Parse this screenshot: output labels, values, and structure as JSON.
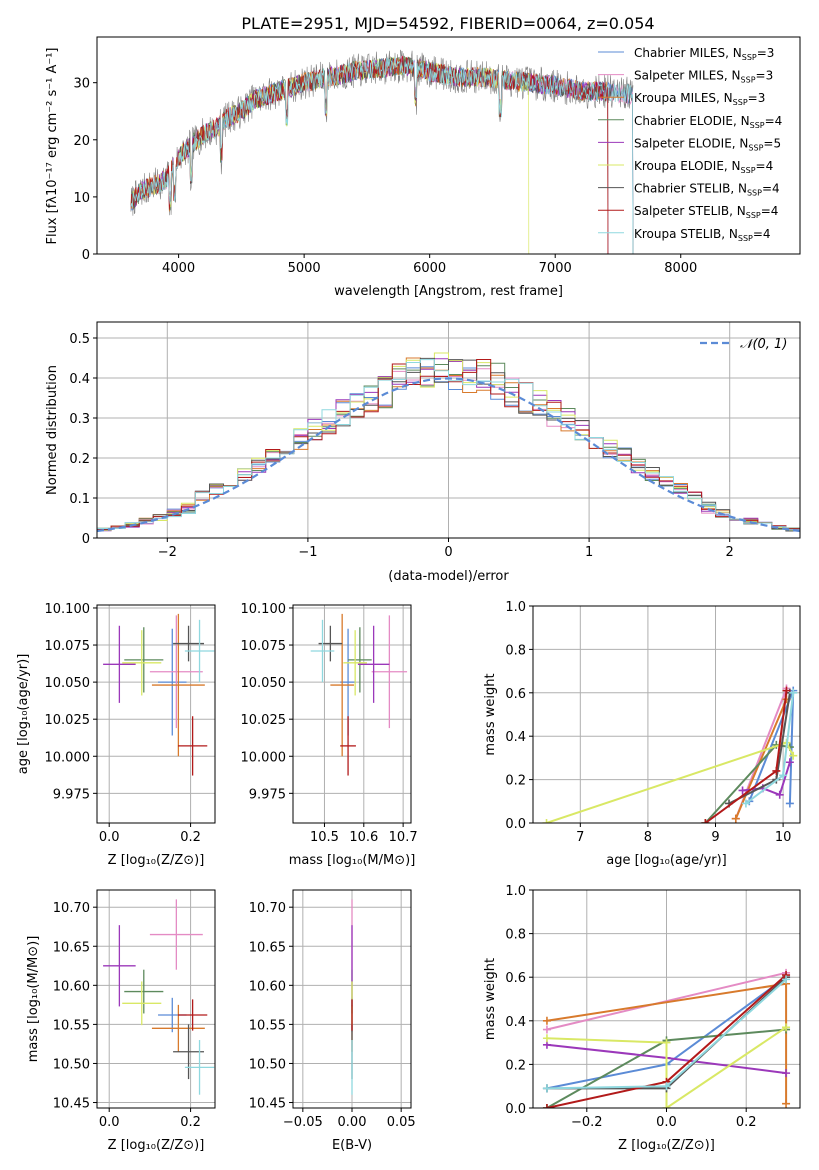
{
  "figure": {
    "title": "PLATE=2951, MJD=54592, FIBERID=0064, z=0.054"
  },
  "colors": {
    "chab_miles": "#5b8bd6",
    "salp_miles": "#e48bc4",
    "krou_miles": "#d87a2c",
    "chab_elodie": "#5d8a5d",
    "salp_elodie": "#9b38ba",
    "krou_elodie": "#d9e865",
    "chab_stelib": "#555555",
    "salp_stelib": "#b21a1a",
    "krou_stelib": "#8fd8df",
    "gaussian": "#5b8bd6",
    "grid": "#b0b0b0"
  },
  "chart_data": [
    {
      "id": "spectrum",
      "type": "line",
      "xlabel": "wavelength [Angstrom, rest frame]",
      "ylabel": "Flux [fλ10⁻¹⁷ erg cm⁻² s⁻¹ A⁻¹]",
      "xlim": [
        3350,
        8950
      ],
      "ylim": [
        0,
        38
      ],
      "xticks": [
        4000,
        5000,
        6000,
        7000,
        8000
      ],
      "yticks": [
        0,
        10,
        20,
        30
      ],
      "grid": false,
      "legend_position": "top-right",
      "continuum": {
        "x": [
          3620,
          3700,
          3800,
          3900,
          4000,
          4100,
          4200,
          4300,
          4400,
          4500,
          4600,
          4800,
          5000,
          5200,
          5400,
          5600,
          5800,
          6000,
          6200,
          6400,
          6600,
          6800,
          7000,
          7200,
          7400,
          7600
        ],
        "y": [
          9,
          11,
          12,
          13,
          17,
          19,
          21,
          22,
          24,
          25,
          27,
          28.5,
          30,
          31,
          32,
          32.5,
          33,
          32,
          31,
          31,
          30.5,
          30,
          29.5,
          28.5,
          28.5,
          28
        ]
      },
      "legend": [
        {
          "label": "Chabrier MILES, N",
          "sub": "SSP",
          "eq": "=3",
          "color": "chab_miles"
        },
        {
          "label": "Salpeter MILES, N",
          "sub": "SSP",
          "eq": "=3",
          "color": "salp_miles"
        },
        {
          "label": "Kroupa MILES, N",
          "sub": "SSP",
          "eq": "=3",
          "color": "krou_miles"
        },
        {
          "label": "Chabrier ELODIE, N",
          "sub": "SSP",
          "eq": "=4",
          "color": "chab_elodie"
        },
        {
          "label": "Salpeter ELODIE, N",
          "sub": "SSP",
          "eq": "=5",
          "color": "salp_elodie"
        },
        {
          "label": "Kroupa ELODIE, N",
          "sub": "SSP",
          "eq": "=4",
          "color": "krou_elodie"
        },
        {
          "label": "Chabrier STELIB, N",
          "sub": "SSP",
          "eq": "=4",
          "color": "chab_stelib"
        },
        {
          "label": "Salpeter STELIB, N",
          "sub": "SSP",
          "eq": "=4",
          "color": "salp_stelib"
        },
        {
          "label": "Kroupa STELIB, N",
          "sub": "SSP",
          "eq": "=4",
          "color": "krou_stelib"
        }
      ]
    },
    {
      "id": "residuals",
      "type": "histogram",
      "xlabel": "(data-model)/error",
      "ylabel": "Normed distribution",
      "xlim": [
        -2.5,
        2.5
      ],
      "ylim": [
        0,
        0.54
      ],
      "xticks": [
        -2,
        -1,
        0,
        1,
        2
      ],
      "yticks": [
        0,
        0.1,
        0.2,
        0.3,
        0.4,
        0.5
      ],
      "grid": true,
      "legend_position": "top-right",
      "gaussian_label": "𝒩(0, 1)",
      "bin_width": 0.1,
      "series_colors": [
        "chab_miles",
        "salp_miles",
        "krou_miles",
        "chab_elodie",
        "salp_elodie",
        "krou_elodie",
        "chab_stelib",
        "salp_stelib",
        "krou_stelib"
      ]
    },
    {
      "id": "age_vs_Z",
      "type": "errorbar",
      "xlabel": "Z [log₁₀(Z/Z⊙)]",
      "ylabel": "age  [log₁₀(age/yr)]",
      "xlim": [
        -0.03,
        0.26
      ],
      "ylim": [
        9.955,
        10.102
      ],
      "xticks": [
        0.0,
        0.2
      ],
      "xticklabels": [
        "0.0",
        "0.2"
      ],
      "yticks": [
        9.975,
        10.0,
        10.025,
        10.05,
        10.075,
        10.1
      ],
      "yticklabels": [
        "9.975",
        "10.000",
        "10.025",
        "10.050",
        "10.075",
        "10.100"
      ],
      "grid": true,
      "points": [
        {
          "x": 0.155,
          "y": 10.05,
          "xerr": 0.035,
          "yerr": 0.036,
          "color": "chab_miles"
        },
        {
          "x": 0.165,
          "y": 10.057,
          "xerr": 0.065,
          "yerr": 0.038,
          "color": "salp_miles"
        },
        {
          "x": 0.17,
          "y": 10.048,
          "xerr": 0.065,
          "yerr": 0.048,
          "color": "krou_miles"
        },
        {
          "x": 0.085,
          "y": 10.065,
          "xerr": 0.048,
          "yerr": 0.022,
          "color": "chab_elodie"
        },
        {
          "x": 0.025,
          "y": 10.062,
          "xerr": 0.04,
          "yerr": 0.026,
          "color": "salp_elodie"
        },
        {
          "x": 0.08,
          "y": 10.063,
          "xerr": 0.048,
          "yerr": 0.022,
          "color": "krou_elodie"
        },
        {
          "x": 0.195,
          "y": 10.076,
          "xerr": 0.038,
          "yerr": 0.012,
          "color": "chab_stelib"
        },
        {
          "x": 0.205,
          "y": 10.007,
          "xerr": 0.036,
          "yerr": 0.02,
          "color": "salp_stelib"
        },
        {
          "x": 0.222,
          "y": 10.071,
          "xerr": 0.036,
          "yerr": 0.021,
          "color": "krou_stelib"
        }
      ]
    },
    {
      "id": "age_vs_mass",
      "type": "errorbar",
      "xlabel": "mass [log₁₀(M/M⊙)]",
      "ylabel": "",
      "xlim": [
        10.42,
        10.72
      ],
      "ylim": [
        9.955,
        10.102
      ],
      "xticks": [
        10.5,
        10.6,
        10.7
      ],
      "xticklabels": [
        "10.5",
        "10.6",
        "10.7"
      ],
      "yticks": [
        9.975,
        10.0,
        10.025,
        10.05,
        10.075,
        10.1
      ],
      "yticklabels": [
        "9.975",
        "10.000",
        "10.025",
        "10.050",
        "10.075",
        "10.100"
      ],
      "grid": true,
      "points": [
        {
          "x": 10.56,
          "y": 10.05,
          "xerr": 0.02,
          "yerr": 0.036,
          "color": "chab_miles"
        },
        {
          "x": 10.665,
          "y": 10.057,
          "xerr": 0.045,
          "yerr": 0.038,
          "color": "salp_miles"
        },
        {
          "x": 10.545,
          "y": 10.048,
          "xerr": 0.03,
          "yerr": 0.048,
          "color": "krou_miles"
        },
        {
          "x": 10.59,
          "y": 10.065,
          "xerr": 0.03,
          "yerr": 0.022,
          "color": "chab_elodie"
        },
        {
          "x": 10.625,
          "y": 10.062,
          "xerr": 0.04,
          "yerr": 0.026,
          "color": "salp_elodie"
        },
        {
          "x": 10.578,
          "y": 10.063,
          "xerr": 0.03,
          "yerr": 0.022,
          "color": "krou_elodie"
        },
        {
          "x": 10.515,
          "y": 10.076,
          "xerr": 0.03,
          "yerr": 0.012,
          "color": "chab_stelib"
        },
        {
          "x": 10.56,
          "y": 10.007,
          "xerr": 0.02,
          "yerr": 0.02,
          "color": "salp_stelib"
        },
        {
          "x": 10.495,
          "y": 10.071,
          "xerr": 0.03,
          "yerr": 0.021,
          "color": "krou_stelib"
        }
      ]
    },
    {
      "id": "mass_vs_Z",
      "type": "errorbar",
      "xlabel": "Z [log₁₀(Z/Z⊙)]",
      "ylabel": "mass [log₁₀(M/M⊙)]",
      "xlim": [
        -0.03,
        0.26
      ],
      "ylim": [
        10.443,
        10.722
      ],
      "xticks": [
        0.0,
        0.2
      ],
      "xticklabels": [
        "0.0",
        "0.2"
      ],
      "yticks": [
        10.45,
        10.5,
        10.55,
        10.6,
        10.65,
        10.7
      ],
      "yticklabels": [
        "10.45",
        "10.50",
        "10.55",
        "10.60",
        "10.65",
        "10.70"
      ],
      "grid": true,
      "points": [
        {
          "x": 0.155,
          "y": 10.562,
          "xerr": 0.035,
          "yerr": 0.022,
          "color": "chab_miles"
        },
        {
          "x": 0.165,
          "y": 10.665,
          "xerr": 0.065,
          "yerr": 0.045,
          "color": "salp_miles"
        },
        {
          "x": 0.17,
          "y": 10.545,
          "xerr": 0.065,
          "yerr": 0.03,
          "color": "krou_miles"
        },
        {
          "x": 0.085,
          "y": 10.592,
          "xerr": 0.048,
          "yerr": 0.028,
          "color": "chab_elodie"
        },
        {
          "x": 0.025,
          "y": 10.625,
          "xerr": 0.04,
          "yerr": 0.052,
          "color": "salp_elodie"
        },
        {
          "x": 0.08,
          "y": 10.577,
          "xerr": 0.048,
          "yerr": 0.028,
          "color": "krou_elodie"
        },
        {
          "x": 0.195,
          "y": 10.515,
          "xerr": 0.038,
          "yerr": 0.035,
          "color": "chab_stelib"
        },
        {
          "x": 0.205,
          "y": 10.562,
          "xerr": 0.036,
          "yerr": 0.02,
          "color": "salp_stelib"
        },
        {
          "x": 0.222,
          "y": 10.495,
          "xerr": 0.036,
          "yerr": 0.035,
          "color": "krou_stelib"
        }
      ]
    },
    {
      "id": "mass_vs_ebv",
      "type": "errorbar",
      "xlabel": "E(B-V)",
      "ylabel": "",
      "xlim": [
        -0.06,
        0.06
      ],
      "ylim": [
        10.443,
        10.722
      ],
      "xticks": [
        -0.05,
        0.0,
        0.05
      ],
      "xticklabels": [
        "−0.05",
        "0.00",
        "0.05"
      ],
      "yticks": [
        10.45,
        10.5,
        10.55,
        10.6,
        10.65,
        10.7
      ],
      "yticklabels": [
        "10.45",
        "10.50",
        "10.55",
        "10.60",
        "10.65",
        "10.70"
      ],
      "grid": true,
      "points": [
        {
          "x": 0.0,
          "y": 10.562,
          "xerr": 0.0,
          "yerr": 0.022,
          "color": "chab_miles"
        },
        {
          "x": 0.0,
          "y": 10.665,
          "xerr": 0.0,
          "yerr": 0.045,
          "color": "salp_miles"
        },
        {
          "x": 0.0,
          "y": 10.545,
          "xerr": 0.0,
          "yerr": 0.03,
          "color": "krou_miles"
        },
        {
          "x": 0.0,
          "y": 10.592,
          "xerr": 0.0,
          "yerr": 0.028,
          "color": "chab_elodie"
        },
        {
          "x": 0.0,
          "y": 10.625,
          "xerr": 0.0,
          "yerr": 0.052,
          "color": "salp_elodie"
        },
        {
          "x": 0.0,
          "y": 10.577,
          "xerr": 0.0,
          "yerr": 0.028,
          "color": "krou_elodie"
        },
        {
          "x": 0.0,
          "y": 10.515,
          "xerr": 0.0,
          "yerr": 0.035,
          "color": "chab_stelib"
        },
        {
          "x": 0.0,
          "y": 10.562,
          "xerr": 0.0,
          "yerr": 0.02,
          "color": "salp_stelib"
        },
        {
          "x": 0.0,
          "y": 10.495,
          "xerr": 0.0,
          "yerr": 0.035,
          "color": "krou_stelib"
        }
      ]
    },
    {
      "id": "weight_vs_age",
      "type": "line",
      "xlabel": "age  [log₁₀(age/yr)]",
      "ylabel": "mass weight",
      "xlim": [
        6.3,
        10.25
      ],
      "ylim": [
        0,
        1
      ],
      "xticks": [
        7,
        8,
        9,
        10
      ],
      "xticklabels": [
        "7",
        "8",
        "9",
        "10"
      ],
      "yticks": [
        0,
        0.2,
        0.4,
        0.6,
        0.8,
        1.0
      ],
      "yticklabels": [
        "0.0",
        "0.2",
        "0.4",
        "0.6",
        "0.8",
        "1.0"
      ],
      "grid": true,
      "series": [
        {
          "color": "chab_miles",
          "x": [
            9.5,
            10.15,
            10.1
          ],
          "y": [
            0.1,
            0.61,
            0.09
          ]
        },
        {
          "color": "salp_miles",
          "x": [
            9.3,
            10.05
          ],
          "y": [
            0.02,
            0.62
          ]
        },
        {
          "color": "krou_miles",
          "x": [
            9.3,
            10.05
          ],
          "y": [
            0.02,
            0.57
          ]
        },
        {
          "color": "chab_elodie",
          "x": [
            8.85,
            9.9,
            10.1
          ],
          "y": [
            0.0,
            0.36,
            0.35
          ]
        },
        {
          "color": "salp_elodie",
          "x": [
            9.4,
            9.7,
            9.95,
            10.1
          ],
          "y": [
            0.15,
            0.16,
            0.13,
            0.28
          ]
        },
        {
          "color": "krou_elodie",
          "x": [
            6.5,
            10.05,
            10.15
          ],
          "y": [
            0.0,
            0.37,
            0.31
          ]
        },
        {
          "color": "chab_stelib",
          "x": [
            9.2,
            9.9,
            10.1
          ],
          "y": [
            0.09,
            0.2,
            0.6
          ]
        },
        {
          "color": "salp_stelib",
          "x": [
            8.85,
            9.9,
            10.05
          ],
          "y": [
            0.0,
            0.24,
            0.61
          ]
        },
        {
          "color": "krou_stelib",
          "x": [
            9.45,
            10.0,
            10.15
          ],
          "y": [
            0.09,
            0.22,
            0.6
          ]
        }
      ]
    },
    {
      "id": "weight_vs_Z",
      "type": "line",
      "xlabel": "Z [log₁₀(Z/Z⊙)]",
      "ylabel": "mass weight",
      "xlim": [
        -0.335,
        0.335
      ],
      "ylim": [
        0,
        1
      ],
      "xticks": [
        -0.2,
        0.0,
        0.2
      ],
      "xticklabels": [
        "−0.2",
        "0.0",
        "0.2"
      ],
      "yticks": [
        0,
        0.2,
        0.4,
        0.6,
        0.8,
        1.0
      ],
      "yticklabels": [
        "0.0",
        "0.2",
        "0.4",
        "0.6",
        "0.8",
        "1.0"
      ],
      "grid": true,
      "series": [
        {
          "color": "chab_miles",
          "x": [
            -0.3,
            0.0,
            0.3
          ],
          "y": [
            0.09,
            0.2,
            0.6
          ]
        },
        {
          "color": "salp_miles",
          "x": [
            -0.3,
            0.3
          ],
          "y": [
            0.36,
            0.62
          ]
        },
        {
          "color": "krou_miles",
          "x": [
            -0.3,
            0.3,
            0.3
          ],
          "y": [
            0.4,
            0.57,
            0.02
          ]
        },
        {
          "color": "chab_elodie",
          "x": [
            -0.3,
            0.0,
            0.3
          ],
          "y": [
            0.0,
            0.31,
            0.36
          ]
        },
        {
          "color": "salp_elodie",
          "x": [
            -0.3,
            0.0,
            0.3
          ],
          "y": [
            0.29,
            0.23,
            0.16
          ]
        },
        {
          "color": "krou_elodie",
          "x": [
            -0.3,
            0.0,
            0.0,
            0.3
          ],
          "y": [
            0.32,
            0.3,
            0.0,
            0.37
          ]
        },
        {
          "color": "chab_stelib",
          "x": [
            -0.3,
            0.0,
            0.3
          ],
          "y": [
            0.09,
            0.09,
            0.6
          ]
        },
        {
          "color": "salp_stelib",
          "x": [
            -0.3,
            0.0,
            0.3
          ],
          "y": [
            0.0,
            0.12,
            0.61
          ]
        },
        {
          "color": "krou_stelib",
          "x": [
            -0.3,
            0.0,
            0.3
          ],
          "y": [
            0.09,
            0.1,
            0.59
          ]
        }
      ]
    }
  ]
}
